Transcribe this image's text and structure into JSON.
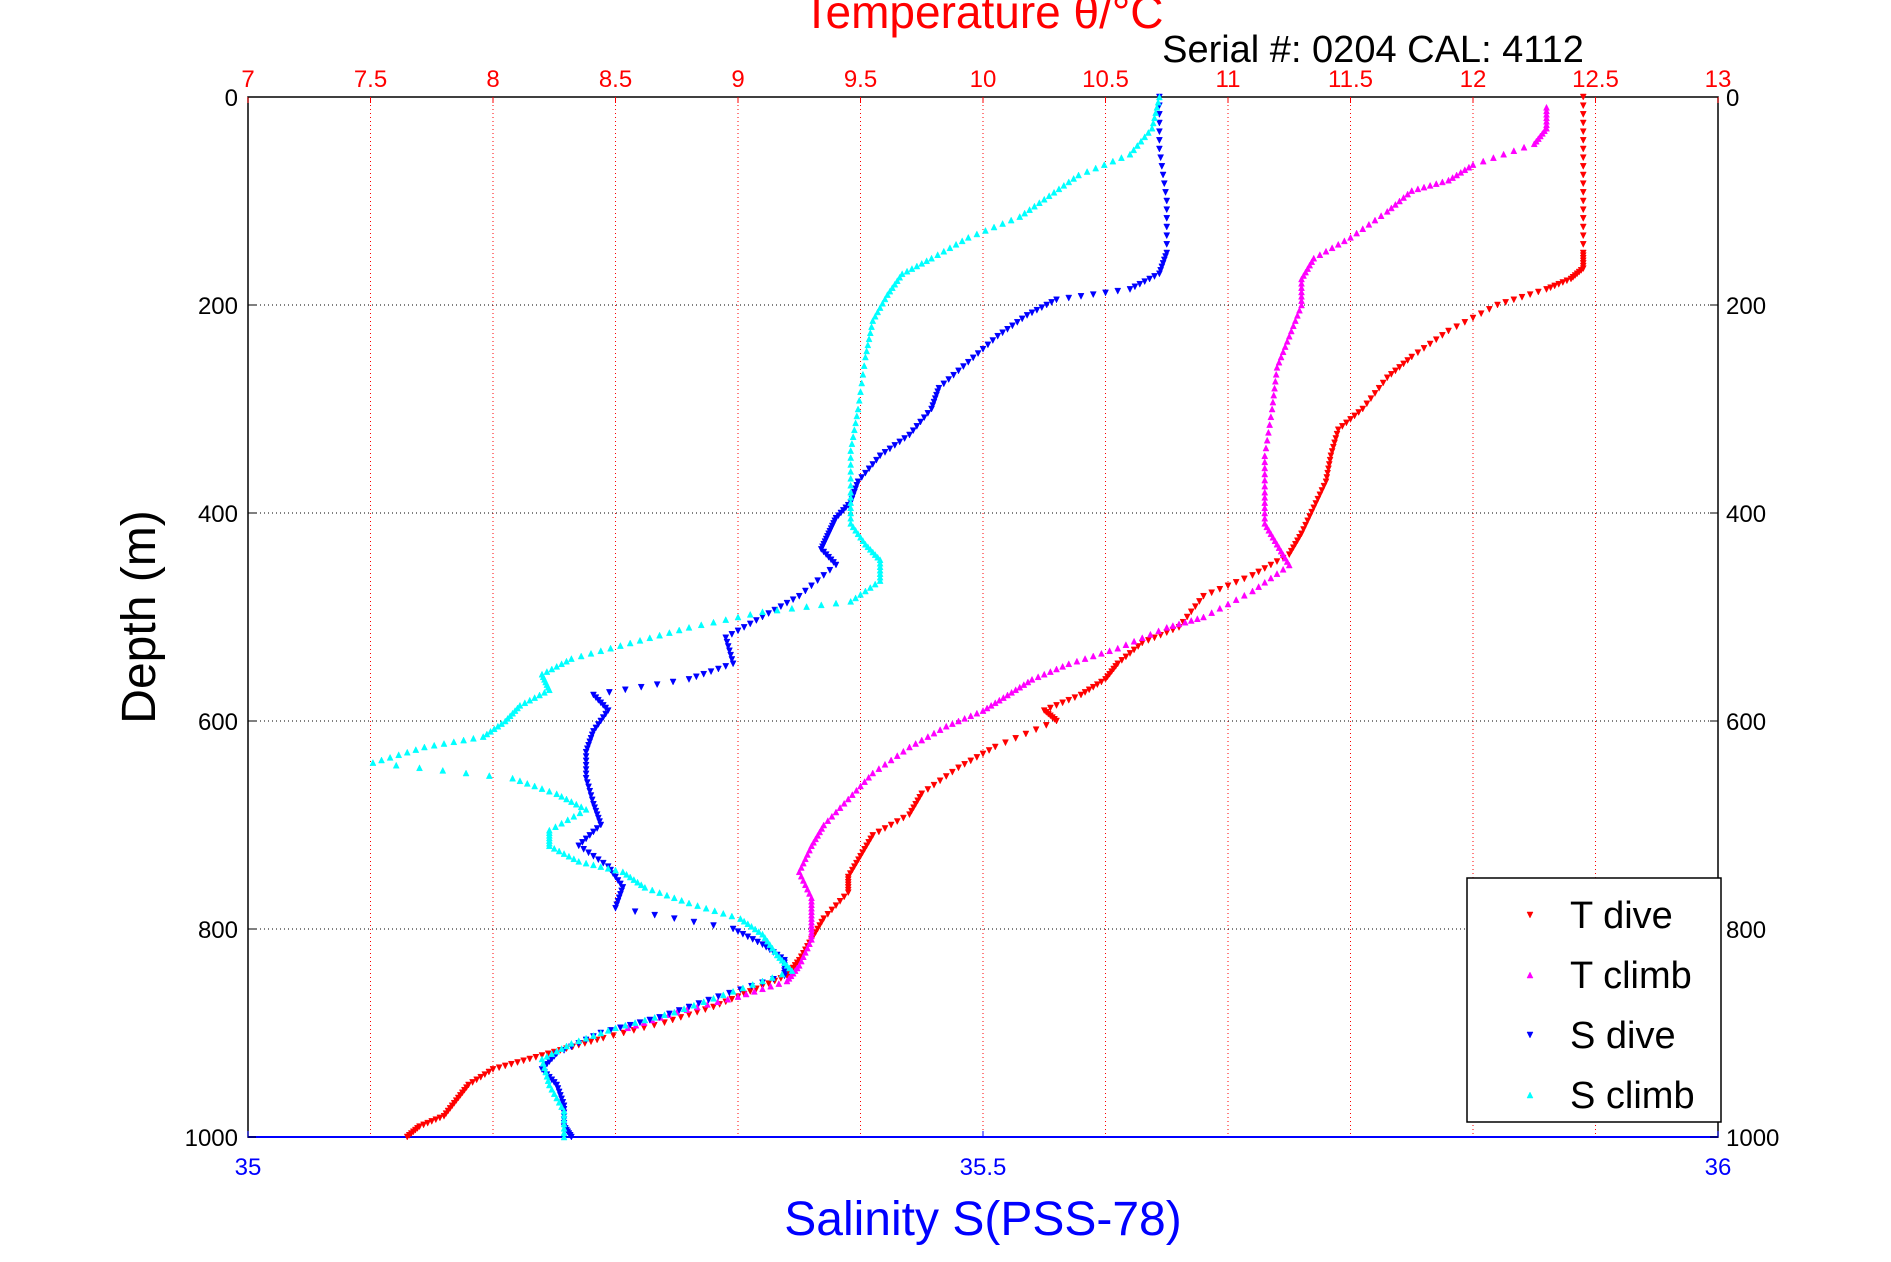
{
  "chart_data": {
    "type": "scatter",
    "title": "Temperature θ/°C",
    "subtitle": "Serial #: 0204  CAL: 4112",
    "xlabel_bottom": "Salinity S(PSS-78)",
    "ylabel": "Depth (m)",
    "x_top": {
      "label": "Temperature θ/°C",
      "range": [
        7,
        13
      ],
      "ticks": [
        "7",
        "7.5",
        "8",
        "8.5",
        "9",
        "9.5",
        "10",
        "10.5",
        "11",
        "11.5",
        "12",
        "12.5",
        "13"
      ],
      "color": "#ff0000"
    },
    "x_bottom": {
      "label": "Salinity S(PSS-78)",
      "range": [
        35,
        36
      ],
      "ticks": [
        "35",
        "35.5",
        "36"
      ],
      "color": "#0000ff"
    },
    "y": {
      "label": "Depth (m)",
      "range": [
        0,
        1000
      ],
      "reversed": true,
      "ticks": [
        "0",
        "200",
        "400",
        "600",
        "800",
        "1000"
      ]
    },
    "grid": true,
    "legend_position": "bottom-right",
    "series": [
      {
        "name": "T dive",
        "axis": "temperature",
        "color": "#ff0000",
        "marker": "triangle-down",
        "points": [
          [
            12.45,
            0
          ],
          [
            12.45,
            50
          ],
          [
            12.45,
            100
          ],
          [
            12.45,
            150
          ],
          [
            12.45,
            165
          ],
          [
            12.4,
            175
          ],
          [
            12.3,
            185
          ],
          [
            12.1,
            200
          ],
          [
            11.9,
            225
          ],
          [
            11.75,
            250
          ],
          [
            11.65,
            270
          ],
          [
            11.55,
            300
          ],
          [
            11.45,
            320
          ],
          [
            11.42,
            345
          ],
          [
            11.4,
            370
          ],
          [
            11.35,
            395
          ],
          [
            11.3,
            420
          ],
          [
            11.25,
            440
          ],
          [
            11.1,
            460
          ],
          [
            10.9,
            480
          ],
          [
            10.8,
            510
          ],
          [
            10.65,
            525
          ],
          [
            10.55,
            545
          ],
          [
            10.5,
            560
          ],
          [
            10.4,
            575
          ],
          [
            10.25,
            590
          ],
          [
            10.3,
            600
          ],
          [
            10.05,
            625
          ],
          [
            9.9,
            645
          ],
          [
            9.75,
            670
          ],
          [
            9.7,
            690
          ],
          [
            9.55,
            710
          ],
          [
            9.5,
            730
          ],
          [
            9.45,
            750
          ],
          [
            9.45,
            765
          ],
          [
            9.35,
            790
          ],
          [
            9.3,
            810
          ],
          [
            9.25,
            830
          ],
          [
            9.2,
            845
          ],
          [
            9.05,
            860
          ],
          [
            8.9,
            875
          ],
          [
            8.7,
            890
          ],
          [
            8.45,
            905
          ],
          [
            8.3,
            915
          ],
          [
            8.15,
            925
          ],
          [
            8.0,
            935
          ],
          [
            7.9,
            950
          ],
          [
            7.85,
            965
          ],
          [
            7.8,
            980
          ],
          [
            7.7,
            990
          ],
          [
            7.65,
            1000
          ]
        ]
      },
      {
        "name": "T climb",
        "axis": "temperature",
        "color": "#ff00ff",
        "marker": "triangle-up",
        "points": [
          [
            12.3,
            10
          ],
          [
            12.3,
            30
          ],
          [
            12.25,
            45
          ],
          [
            12.0,
            65
          ],
          [
            11.9,
            80
          ],
          [
            11.75,
            90
          ],
          [
            11.65,
            110
          ],
          [
            11.5,
            135
          ],
          [
            11.35,
            155
          ],
          [
            11.3,
            175
          ],
          [
            11.3,
            200
          ],
          [
            11.25,
            230
          ],
          [
            11.2,
            260
          ],
          [
            11.18,
            300
          ],
          [
            11.15,
            345
          ],
          [
            11.15,
            380
          ],
          [
            11.15,
            410
          ],
          [
            11.2,
            430
          ],
          [
            11.25,
            450
          ],
          [
            11.1,
            475
          ],
          [
            10.9,
            500
          ],
          [
            10.75,
            510
          ],
          [
            10.55,
            530
          ],
          [
            10.35,
            545
          ],
          [
            10.2,
            560
          ],
          [
            10.1,
            575
          ],
          [
            10.0,
            590
          ],
          [
            9.85,
            605
          ],
          [
            9.7,
            625
          ],
          [
            9.55,
            650
          ],
          [
            9.45,
            675
          ],
          [
            9.35,
            700
          ],
          [
            9.3,
            720
          ],
          [
            9.25,
            745
          ],
          [
            9.3,
            770
          ],
          [
            9.3,
            790
          ],
          [
            9.3,
            810
          ],
          [
            9.25,
            835
          ],
          [
            9.2,
            850
          ],
          [
            9.0,
            865
          ],
          [
            8.75,
            880
          ],
          [
            8.55,
            895
          ]
        ]
      },
      {
        "name": "S dive",
        "axis": "salinity",
        "color": "#0000ff",
        "marker": "triangle-down",
        "points": [
          [
            35.62,
            0
          ],
          [
            35.62,
            50
          ],
          [
            35.625,
            100
          ],
          [
            35.625,
            150
          ],
          [
            35.62,
            170
          ],
          [
            35.6,
            185
          ],
          [
            35.55,
            195
          ],
          [
            35.53,
            210
          ],
          [
            35.51,
            230
          ],
          [
            35.49,
            255
          ],
          [
            35.47,
            280
          ],
          [
            35.465,
            300
          ],
          [
            35.45,
            325
          ],
          [
            35.43,
            345
          ],
          [
            35.415,
            370
          ],
          [
            35.41,
            390
          ],
          [
            35.4,
            405
          ],
          [
            35.395,
            420
          ],
          [
            35.39,
            435
          ],
          [
            35.4,
            450
          ],
          [
            35.375,
            480
          ],
          [
            35.35,
            500
          ],
          [
            35.325,
            520
          ],
          [
            35.33,
            545
          ],
          [
            35.3,
            560
          ],
          [
            35.235,
            575
          ],
          [
            35.245,
            590
          ],
          [
            35.235,
            610
          ],
          [
            35.23,
            630
          ],
          [
            35.23,
            655
          ],
          [
            35.235,
            680
          ],
          [
            35.24,
            700
          ],
          [
            35.225,
            720
          ],
          [
            35.245,
            740
          ],
          [
            35.255,
            760
          ],
          [
            35.25,
            780
          ],
          [
            35.33,
            800
          ],
          [
            35.35,
            815
          ],
          [
            35.365,
            830
          ],
          [
            35.365,
            845
          ],
          [
            35.32,
            865
          ],
          [
            35.28,
            885
          ],
          [
            35.24,
            900
          ],
          [
            35.21,
            920
          ],
          [
            35.2,
            935
          ],
          [
            35.21,
            950
          ],
          [
            35.215,
            970
          ],
          [
            35.215,
            990
          ],
          [
            35.22,
            1000
          ]
        ]
      },
      {
        "name": "S climb",
        "axis": "salinity",
        "color": "#00ffff",
        "marker": "triangle-up",
        "points": [
          [
            35.62,
            0
          ],
          [
            35.615,
            30
          ],
          [
            35.6,
            55
          ],
          [
            35.565,
            75
          ],
          [
            35.545,
            95
          ],
          [
            35.525,
            115
          ],
          [
            35.49,
            135
          ],
          [
            35.465,
            155
          ],
          [
            35.445,
            170
          ],
          [
            35.435,
            190
          ],
          [
            35.425,
            215
          ],
          [
            35.42,
            250
          ],
          [
            35.415,
            300
          ],
          [
            35.41,
            340
          ],
          [
            35.41,
            380
          ],
          [
            35.41,
            410
          ],
          [
            35.42,
            430
          ],
          [
            35.43,
            445
          ],
          [
            35.43,
            465
          ],
          [
            35.41,
            485
          ],
          [
            35.35,
            495
          ],
          [
            35.3,
            510
          ],
          [
            35.26,
            525
          ],
          [
            35.22,
            540
          ],
          [
            35.2,
            555
          ],
          [
            35.205,
            570
          ],
          [
            35.185,
            585
          ],
          [
            35.175,
            600
          ],
          [
            35.16,
            615
          ],
          [
            35.12,
            625
          ],
          [
            35.085,
            640
          ],
          [
            35.18,
            655
          ],
          [
            35.21,
            670
          ],
          [
            35.23,
            685
          ],
          [
            35.205,
            705
          ],
          [
            35.205,
            720
          ],
          [
            35.225,
            735
          ],
          [
            35.255,
            745
          ],
          [
            35.27,
            760
          ],
          [
            35.3,
            775
          ],
          [
            35.335,
            790
          ],
          [
            35.35,
            805
          ],
          [
            35.36,
            825
          ],
          [
            35.37,
            840
          ],
          [
            35.33,
            860
          ],
          [
            35.29,
            880
          ],
          [
            35.25,
            895
          ],
          [
            35.22,
            910
          ],
          [
            35.2,
            925
          ],
          [
            35.205,
            950
          ],
          [
            35.215,
            975
          ],
          [
            35.215,
            1000
          ]
        ]
      }
    ]
  }
}
